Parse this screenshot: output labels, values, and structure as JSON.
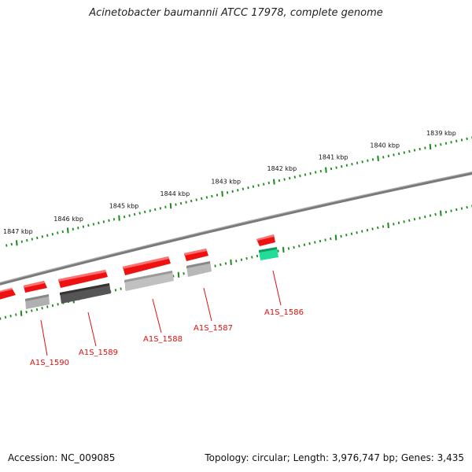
{
  "header": {
    "title": "Acinetobacter baumannii ATCC 17978, complete genome"
  },
  "footer": {
    "accession": "Accession: NC_009085",
    "topology": "Topology: circular; Length: 3,976,747 bp; Genes: 3,435"
  },
  "scale": {
    "labels": [
      {
        "kbp": 1847,
        "text": "1847 kbp"
      },
      {
        "kbp": 1846,
        "text": "1846 kbp"
      },
      {
        "kbp": 1845,
        "text": "1845 kbp"
      },
      {
        "kbp": 1844,
        "text": "1844 kbp"
      },
      {
        "kbp": 1843,
        "text": "1843 kbp"
      },
      {
        "kbp": 1842,
        "text": "1842 kbp"
      },
      {
        "kbp": 1841,
        "text": "1841 kbp"
      },
      {
        "kbp": 1840,
        "text": "1840 kbp"
      },
      {
        "kbp": 1839,
        "text": "1839 kbp"
      }
    ]
  },
  "genes": [
    {
      "name": "A1S_1590",
      "strand": "forward",
      "color": "#ee1111"
    },
    {
      "name": "A1S_1589",
      "strand": "forward",
      "color": "#ee1111"
    },
    {
      "name": "A1S_1588",
      "strand": "forward",
      "color": "#ee1111"
    },
    {
      "name": "A1S_1587",
      "strand": "forward",
      "color": "#ee1111"
    },
    {
      "name": "A1S_1586",
      "strand": "reverse",
      "color": "#ee1111"
    }
  ],
  "colors": {
    "backbone": "#7a7a7a",
    "ticks": "#1a8a1a",
    "gene_forward": "#ee1111",
    "feature_gray": "#b0b0b0",
    "feature_dark": "#555555",
    "feature_green": "#22dd99",
    "gene_label": "#dd1111"
  }
}
